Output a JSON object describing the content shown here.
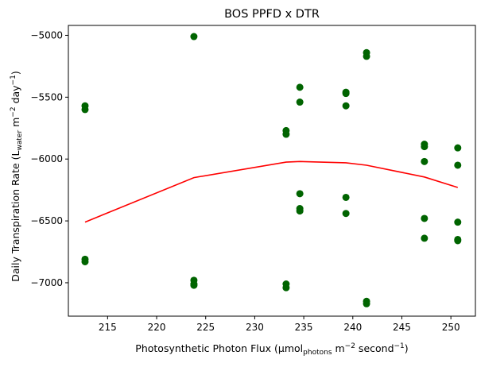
{
  "chart_data": {
    "type": "scatter",
    "title": "BOS PPFD x DTR",
    "xlabel": {
      "prefix": "Photosynthetic Photon Flux (µmol",
      "sub": "photons",
      "mid": " m",
      "sup1": "−2",
      "mid2": " second",
      "sup2": "−1",
      "suffix": ")"
    },
    "ylabel": {
      "prefix": "Daily Transpiration Rate (L",
      "sub": "water",
      "mid": " m",
      "sup1": "−2",
      "mid2": " day",
      "sup2": "−1",
      "suffix": ")"
    },
    "xlim": [
      211,
      252.5
    ],
    "ylim": [
      -7270,
      -4920
    ],
    "xticks": [
      215,
      220,
      225,
      230,
      235,
      240,
      245,
      250
    ],
    "yticks": [
      -7000,
      -6500,
      -6000,
      -5500,
      -5000
    ],
    "grid": false,
    "series": [
      {
        "kind": "scatter",
        "color": "#006400",
        "points": [
          [
            212.7,
            -5570
          ],
          [
            212.7,
            -5600
          ],
          [
            212.7,
            -6810
          ],
          [
            212.7,
            -6830
          ],
          [
            223.8,
            -5010
          ],
          [
            223.8,
            -6980
          ],
          [
            223.8,
            -7010
          ],
          [
            223.8,
            -7020
          ],
          [
            233.2,
            -5770
          ],
          [
            233.2,
            -5800
          ],
          [
            233.2,
            -7010
          ],
          [
            233.2,
            -7040
          ],
          [
            234.6,
            -5420
          ],
          [
            234.6,
            -5540
          ],
          [
            234.6,
            -6280
          ],
          [
            234.6,
            -6400
          ],
          [
            234.6,
            -6420
          ],
          [
            239.3,
            -5460
          ],
          [
            239.3,
            -5470
          ],
          [
            239.3,
            -5570
          ],
          [
            239.3,
            -6310
          ],
          [
            239.3,
            -6440
          ],
          [
            241.4,
            -5140
          ],
          [
            241.4,
            -5170
          ],
          [
            241.4,
            -7150
          ],
          [
            241.4,
            -7170
          ],
          [
            247.3,
            -5880
          ],
          [
            247.3,
            -5900
          ],
          [
            247.3,
            -6020
          ],
          [
            247.3,
            -6480
          ],
          [
            247.3,
            -6640
          ],
          [
            250.7,
            -5910
          ],
          [
            250.7,
            -6050
          ],
          [
            250.7,
            -6510
          ],
          [
            250.7,
            -6650
          ],
          [
            250.7,
            -6660
          ]
        ]
      },
      {
        "kind": "line",
        "color": "#ff0000",
        "points": [
          [
            212.7,
            -6510
          ],
          [
            223.8,
            -6150
          ],
          [
            233.2,
            -6025
          ],
          [
            234.6,
            -6020
          ],
          [
            239.3,
            -6030
          ],
          [
            241.4,
            -6050
          ],
          [
            247.3,
            -6145
          ],
          [
            250.7,
            -6230
          ]
        ]
      }
    ]
  }
}
